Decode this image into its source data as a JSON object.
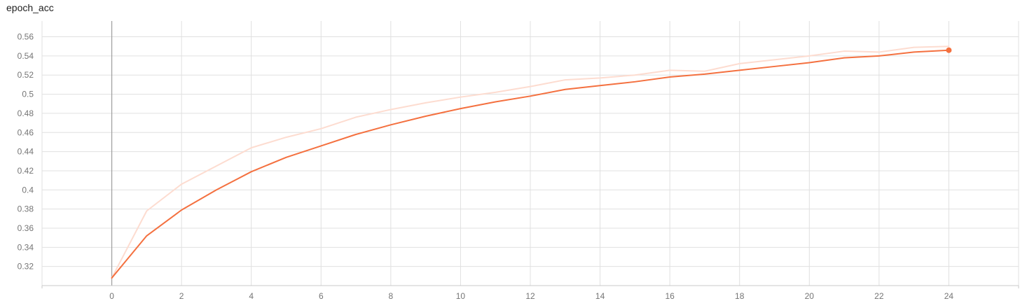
{
  "chart_data": {
    "type": "line",
    "title": "epoch_acc",
    "xlabel": "",
    "ylabel": "",
    "xlim": [
      -2,
      26
    ],
    "ylim": [
      0.3,
      0.5765
    ],
    "grid": true,
    "x_ticks": [
      0,
      2,
      4,
      6,
      8,
      10,
      12,
      14,
      16,
      18,
      20,
      22,
      24
    ],
    "y_ticks": [
      0.32,
      0.34,
      0.36,
      0.38,
      0.4,
      0.42,
      0.44,
      0.46,
      0.48,
      0.5,
      0.52,
      0.54,
      0.56
    ],
    "series": [
      {
        "role": "raw",
        "color": "#fddcd0",
        "x": [
          0,
          1,
          2,
          3,
          4,
          5,
          6,
          7,
          8,
          9,
          10,
          11,
          12,
          13,
          14,
          15,
          16,
          17,
          18,
          19,
          20,
          21,
          22,
          23,
          24
        ],
        "y": [
          0.308,
          0.378,
          0.406,
          0.425,
          0.444,
          0.455,
          0.464,
          0.476,
          0.484,
          0.491,
          0.497,
          0.502,
          0.508,
          0.515,
          0.517,
          0.52,
          0.525,
          0.524,
          0.532,
          0.536,
          0.54,
          0.545,
          0.544,
          0.549,
          0.55
        ]
      },
      {
        "role": "smoothed",
        "color": "#f4703f",
        "x": [
          0,
          1,
          2,
          3,
          4,
          5,
          6,
          7,
          8,
          9,
          10,
          11,
          12,
          13,
          14,
          15,
          16,
          17,
          18,
          19,
          20,
          21,
          22,
          23,
          24
        ],
        "y": [
          0.308,
          0.352,
          0.379,
          0.4,
          0.419,
          0.434,
          0.446,
          0.458,
          0.468,
          0.477,
          0.485,
          0.492,
          0.498,
          0.505,
          0.509,
          0.513,
          0.518,
          0.521,
          0.525,
          0.529,
          0.533,
          0.538,
          0.54,
          0.544,
          0.546
        ]
      }
    ]
  }
}
